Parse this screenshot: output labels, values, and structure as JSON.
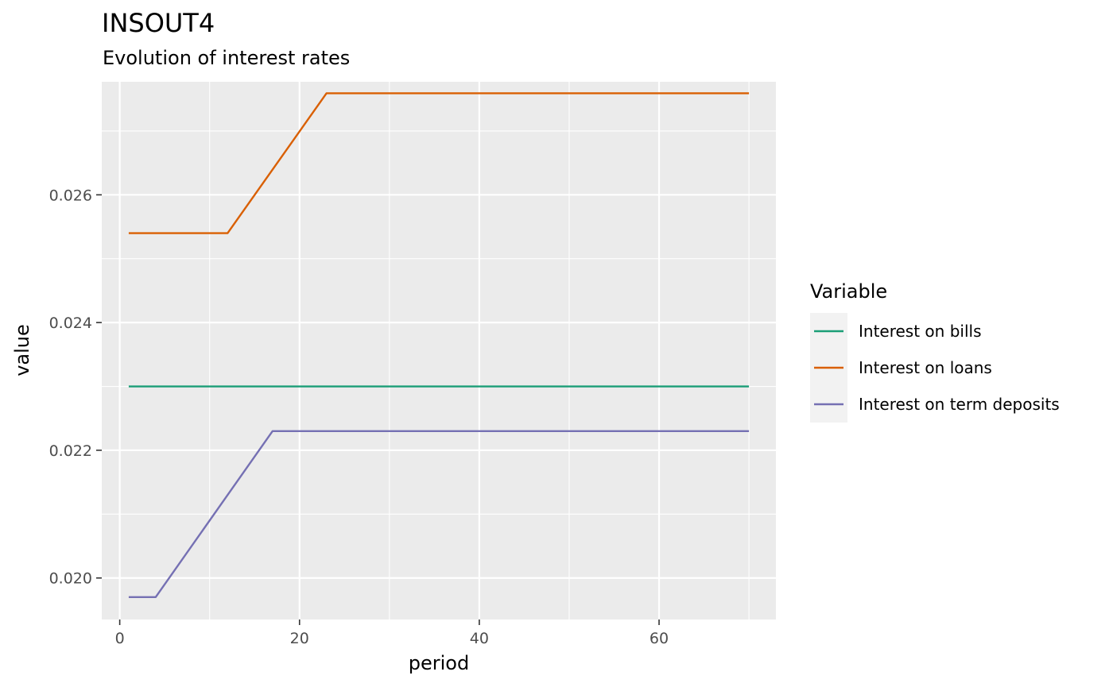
{
  "chart_data": {
    "type": "line",
    "title": "INSOUT4",
    "subtitle": "Evolution of interest rates",
    "xlabel": "period",
    "ylabel": "value",
    "xlim": [
      -2,
      73
    ],
    "ylim": [
      0.01935,
      0.02777
    ],
    "x_ticks": [
      0,
      20,
      40,
      60
    ],
    "x_tick_labels": [
      "0",
      "20",
      "40",
      "60"
    ],
    "y_ticks": [
      0.02,
      0.022,
      0.024,
      0.026
    ],
    "y_tick_labels": [
      "0.020",
      "0.022",
      "0.024",
      "0.026"
    ],
    "grid": true,
    "legend": {
      "title": "Variable",
      "position": "right"
    },
    "series": [
      {
        "name": "Interest on bills",
        "color": "#1b9e77",
        "points": [
          [
            1,
            0.023
          ],
          [
            70,
            0.023
          ]
        ]
      },
      {
        "name": "Interest on loans",
        "color": "#d95f02",
        "points": [
          [
            1,
            0.0254
          ],
          [
            12,
            0.0254
          ],
          [
            23,
            0.02759
          ],
          [
            70,
            0.02759
          ]
        ]
      },
      {
        "name": "Interest on term deposits",
        "color": "#7570b3",
        "points": [
          [
            1,
            0.0197
          ],
          [
            4,
            0.0197
          ],
          [
            17,
            0.0223
          ],
          [
            70,
            0.0223
          ]
        ]
      }
    ]
  }
}
